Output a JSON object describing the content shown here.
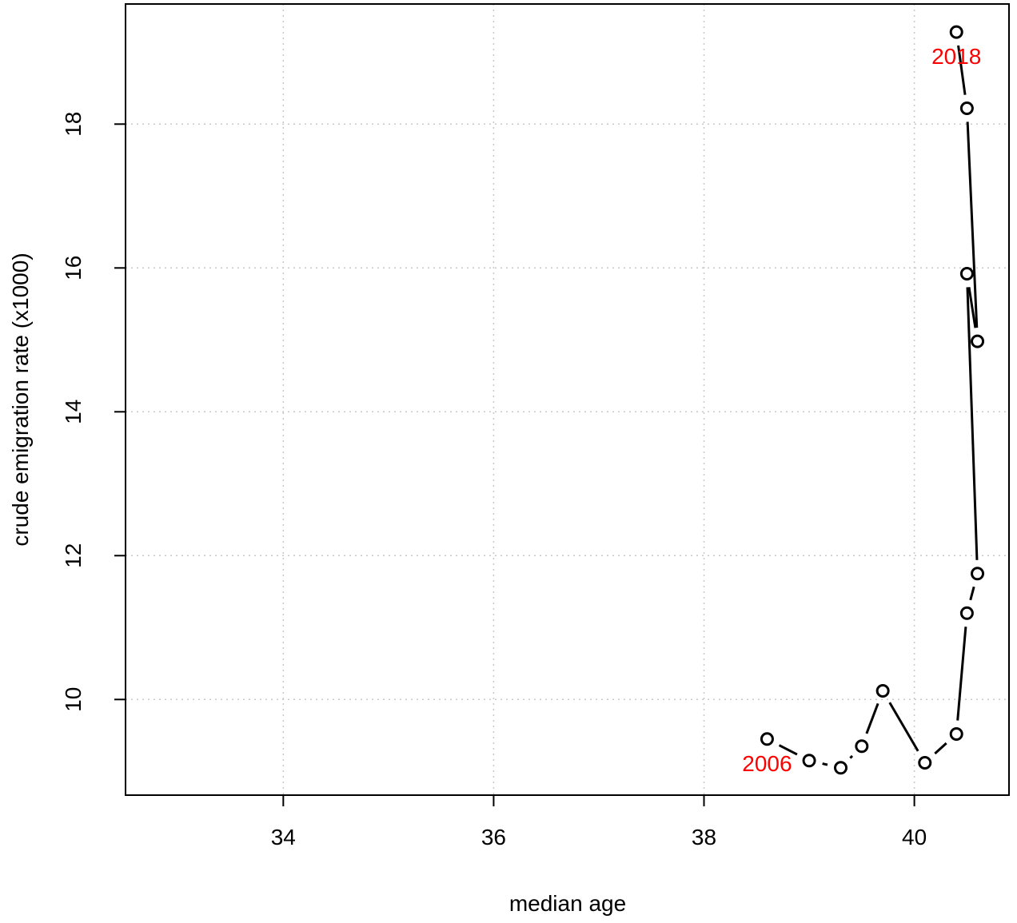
{
  "chart_data": {
    "type": "line",
    "title": "",
    "xlabel": "median age",
    "ylabel": "crude emigration rate (x1000)",
    "xlim": [
      32.5,
      40.9
    ],
    "ylim": [
      8.67,
      19.67
    ],
    "grid": true,
    "grid_style": "dotted",
    "x_ticks": [
      34,
      36,
      38,
      40
    ],
    "y_ticks": [
      10,
      12,
      14,
      16,
      18
    ],
    "series": [
      {
        "x": [
          38.6,
          39.0,
          39.3,
          39.5,
          39.7,
          40.1,
          40.4,
          40.5,
          40.6,
          40.5,
          40.6,
          40.5,
          40.4
        ],
        "y": [
          9.45,
          9.15,
          9.05,
          9.35,
          10.12,
          9.12,
          9.52,
          11.2,
          11.75,
          15.92,
          14.98,
          18.22,
          19.28
        ]
      }
    ],
    "point_labels": [
      {
        "index": 0,
        "text": "2006",
        "color": "#ff0000"
      },
      {
        "index": 12,
        "text": "2018",
        "color": "#ff0000"
      }
    ],
    "line_color": "#000000",
    "grid_color": "#c8c8c8"
  }
}
